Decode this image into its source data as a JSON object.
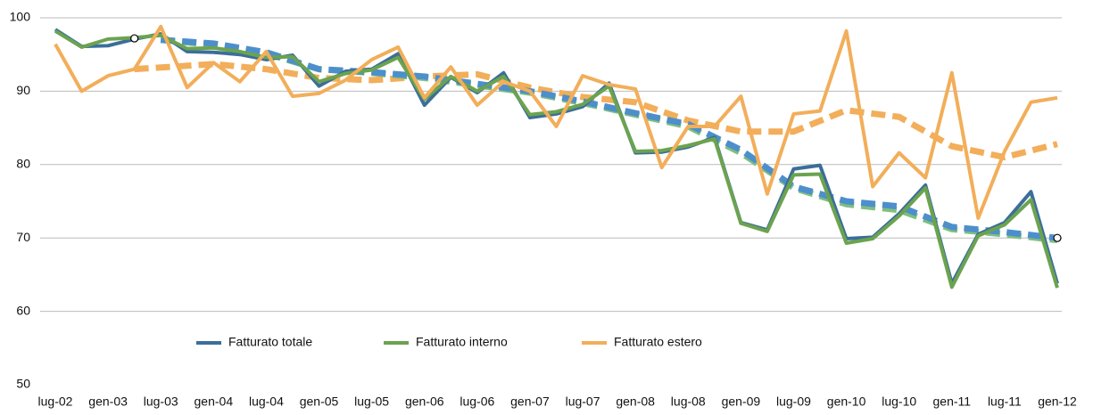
{
  "chart_data": {
    "type": "line",
    "categories": [
      "lug-02",
      null,
      "gen-03",
      null,
      "lug-03",
      null,
      "gen-04",
      null,
      "lug-04",
      null,
      "gen-05",
      null,
      "lug-05",
      null,
      "gen-06",
      null,
      "lug-06",
      null,
      "gen-07",
      null,
      "lug-07",
      null,
      "gen-08",
      null,
      "lug-08",
      null,
      "gen-09",
      null,
      "lug-09",
      null,
      "gen-10",
      null,
      "lug-10",
      null,
      "gen-11",
      null,
      "lug-11",
      null,
      "gen-12"
    ],
    "series": [
      {
        "name": "Fatturato totale",
        "color": "#3b6e9a",
        "values": [
          98.4,
          96.1,
          96.2,
          97.1,
          97.8,
          95.4,
          95.3,
          95.0,
          94.3,
          94.9,
          90.7,
          92.7,
          93.0,
          95.1,
          88.1,
          91.9,
          89.8,
          92.5,
          86.4,
          86.9,
          87.9,
          91.1,
          81.6,
          81.7,
          82.4,
          83.7,
          72.1,
          71.1,
          79.4,
          79.9,
          69.9,
          70.1,
          73.3,
          77.2,
          63.8,
          70.5,
          72.1,
          76.3,
          63.8
        ]
      },
      {
        "name": "Fatturato interno",
        "color": "#6ba34f",
        "values": [
          98.2,
          96.0,
          97.1,
          97.3,
          97.6,
          95.8,
          95.9,
          95.4,
          94.6,
          94.7,
          91.3,
          92.4,
          92.9,
          94.6,
          88.9,
          92.0,
          90.0,
          92.0,
          86.8,
          87.2,
          88.2,
          90.7,
          81.8,
          81.9,
          82.6,
          83.5,
          72.0,
          70.9,
          78.6,
          78.7,
          69.3,
          69.9,
          73.0,
          76.8,
          63.3,
          70.3,
          71.8,
          75.2,
          63.2
        ]
      },
      {
        "name": "Fatturato estero",
        "color": "#f2ae5a",
        "values": [
          96.4,
          90.0,
          92.1,
          93.0,
          98.8,
          90.5,
          93.9,
          91.3,
          95.4,
          89.3,
          89.7,
          91.5,
          94.3,
          96.0,
          89.1,
          93.3,
          88.1,
          91.3,
          90.0,
          85.2,
          92.1,
          90.9,
          90.3,
          79.6,
          85.2,
          85.2,
          89.3,
          76.0,
          86.9,
          87.3,
          98.2,
          77.0,
          81.6,
          78.2,
          92.5,
          72.7,
          81.8,
          88.5,
          89.1
        ]
      }
    ],
    "trends": [
      {
        "color": "#f2ae5a",
        "x": [
          3,
          6,
          8,
          10,
          12,
          14,
          16,
          18,
          20,
          22,
          24,
          26,
          28,
          30,
          32,
          34,
          36,
          38
        ],
        "values": [
          93.0,
          93.7,
          93.0,
          91.8,
          91.5,
          92.0,
          92.3,
          90.5,
          89.2,
          88.5,
          86.0,
          84.5,
          84.5,
          87.4,
          86.5,
          82.5,
          81.0,
          82.8
        ]
      },
      {
        "color": "#7fbf7f",
        "x": [
          4,
          6,
          8,
          10,
          12,
          14,
          16,
          18,
          20,
          22,
          24,
          26,
          28,
          30,
          32,
          34,
          36,
          38
        ],
        "values": [
          97.0,
          96.3,
          95.1,
          93.0,
          92.5,
          91.8,
          90.8,
          89.8,
          88.4,
          86.8,
          85.2,
          81.6,
          76.8,
          74.6,
          73.8,
          71.2,
          70.5,
          69.7
        ]
      },
      {
        "color": "#4d8fcc",
        "x": [
          4,
          6,
          8,
          10,
          12,
          14,
          16,
          18,
          20,
          22,
          24,
          26,
          28,
          30,
          32,
          34,
          36,
          38
        ],
        "values": [
          97.0,
          96.5,
          95.3,
          93.0,
          92.6,
          92.0,
          91.0,
          90.0,
          88.6,
          87.0,
          85.5,
          82.0,
          77.0,
          75.0,
          74.3,
          71.5,
          70.8,
          70.0
        ]
      }
    ],
    "markers": {
      "x": [
        3,
        38
      ],
      "values": [
        97.2,
        70.0
      ]
    },
    "ylim": [
      50,
      100
    ],
    "yticks": [
      50,
      60,
      70,
      80,
      90,
      100
    ],
    "grid": true
  }
}
